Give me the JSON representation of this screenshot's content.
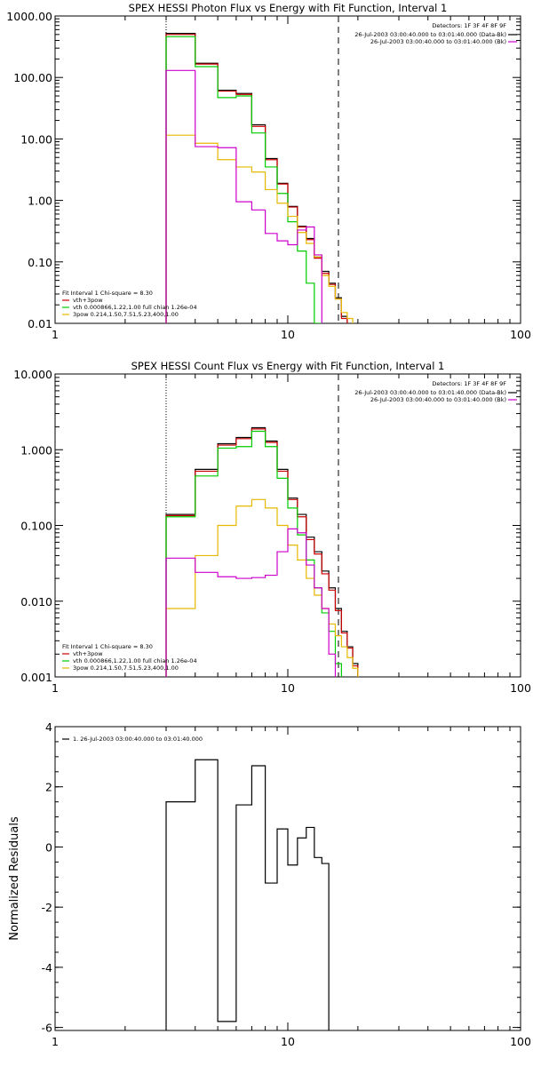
{
  "chart_data": [
    {
      "type": "line",
      "title": "SPEX HESSI Photon Flux vs Energy with Fit Function, Interval 1",
      "xscale": "log",
      "yscale": "log",
      "xlim": [
        1,
        100
      ],
      "ylim": [
        0.01,
        1000
      ],
      "x_ticks": [
        1,
        10,
        100
      ],
      "x_tick_labels": [
        "1",
        "10",
        "100"
      ],
      "y_ticks": [
        0.01,
        0.1,
        1,
        10,
        100,
        1000
      ],
      "y_tick_labels": [
        "0.01",
        "0.10",
        "1.00",
        "10.00",
        "100.00",
        "1000.00"
      ],
      "vlines": [
        {
          "x": 3,
          "style": "dotted"
        },
        {
          "x": 16.5,
          "style": "dashed"
        }
      ],
      "legend_right": {
        "header": "Detectors: 1F 3F 4F 8F 9F",
        "entries": [
          {
            "label": "26-Jul-2003 03:00:40.000 to 03:01:40.000 (Data-Bk)",
            "color": "#000000"
          },
          {
            "label": "26-Jul-2003 03:00:40.000 to 03:01:40.000 (Bk)",
            "color": "#cc00cc"
          }
        ]
      },
      "legend_left": {
        "header": "Fit Interval 1   Chi-square = 8.30",
        "entries": [
          {
            "label": "vth+3pow",
            "color": "#cc0000"
          },
          {
            "label": "vth 0.000866,1.22,1.00  full chian 1.26e-04",
            "color": "#00cc00"
          },
          {
            "label": "3pow 0.214,1.50,7.51,5.23,400,1.00",
            "color": "#e6b800"
          }
        ]
      },
      "x_edges": [
        3,
        4,
        5,
        6,
        7,
        8,
        9,
        10,
        11,
        12,
        13,
        14,
        15,
        16,
        17,
        18,
        19,
        20,
        21
      ],
      "series": [
        {
          "name": "Data-Bk",
          "color": "#000000",
          "values": [
            520,
            170,
            62,
            55,
            17,
            4.8,
            1.9,
            0.8,
            0.38,
            0.24,
            0.12,
            0.07,
            0.045,
            0.026,
            0.013,
            null,
            null,
            null
          ]
        },
        {
          "name": "vth+3pow",
          "color": "#cc0000",
          "values": [
            500,
            165,
            60,
            53,
            16,
            4.6,
            1.85,
            0.78,
            0.37,
            0.23,
            0.115,
            0.065,
            0.043,
            0.025,
            0.012,
            null,
            null,
            null
          ]
        },
        {
          "name": "vth",
          "color": "#00cc00",
          "values": [
            460,
            150,
            47,
            50,
            12.5,
            3.5,
            1.3,
            0.45,
            0.15,
            0.045,
            0.01,
            null,
            null,
            null,
            null,
            null,
            null,
            null
          ]
        },
        {
          "name": "3pow",
          "color": "#e6b800",
          "values": [
            11.5,
            8.5,
            4.6,
            3.5,
            2.9,
            1.5,
            0.9,
            0.55,
            0.3,
            0.2,
            0.12,
            0.06,
            0.04,
            0.025,
            0.015,
            0.012,
            null,
            null
          ]
        },
        {
          "name": "Bk",
          "color": "#cc00cc",
          "values": [
            130,
            7.5,
            7.2,
            0.95,
            0.7,
            0.29,
            0.22,
            0.19,
            0.33,
            0.37,
            0.13,
            null,
            null,
            null,
            null,
            null,
            null,
            null
          ]
        }
      ]
    },
    {
      "type": "line",
      "title": "SPEX HESSI Count Flux vs Energy with Fit Function, Interval 1",
      "xscale": "log",
      "yscale": "log",
      "xlim": [
        1,
        100
      ],
      "ylim": [
        0.001,
        10
      ],
      "x_ticks": [
        1,
        10,
        100
      ],
      "x_tick_labels": [
        "1",
        "10",
        "100"
      ],
      "y_ticks": [
        0.001,
        0.01,
        0.1,
        1,
        10
      ],
      "y_tick_labels": [
        "0.001",
        "0.010",
        "0.100",
        "1.000",
        "10.000"
      ],
      "vlines": [
        {
          "x": 3,
          "style": "dotted"
        },
        {
          "x": 16.5,
          "style": "dashed"
        }
      ],
      "legend_right": {
        "header": "Detectors: 1F 3F 4F 8F 9F",
        "entries": [
          {
            "label": "26-Jul-2003 03:00:40.000 to 03:01:40.000 (Data-Bk)",
            "color": "#000000"
          },
          {
            "label": "26-Jul-2003 03:00:40.000 to 03:01:40.000 (Bk)",
            "color": "#cc00cc"
          }
        ]
      },
      "legend_left": {
        "header": "Fit Interval 1   Chi-square = 8.30",
        "entries": [
          {
            "label": "vth+3pow",
            "color": "#cc0000"
          },
          {
            "label": "vth 0.000866,1.22,1.00  full chian 1.26e-04",
            "color": "#00cc00"
          },
          {
            "label": "3pow 0.214,1.50,7.51,5.23,400,1.00",
            "color": "#e6b800"
          }
        ]
      },
      "x_edges": [
        3,
        4,
        5,
        6,
        7,
        8,
        9,
        10,
        11,
        12,
        13,
        14,
        15,
        16,
        17,
        18,
        19,
        20,
        21
      ],
      "series": [
        {
          "name": "Data-Bk",
          "color": "#000000",
          "values": [
            0.14,
            0.55,
            1.2,
            1.45,
            1.95,
            1.3,
            0.55,
            0.23,
            0.14,
            0.07,
            0.045,
            0.025,
            0.015,
            0.008,
            0.004,
            0.0025,
            0.0015,
            null
          ]
        },
        {
          "name": "vth+3pow",
          "color": "#cc0000",
          "values": [
            0.135,
            0.52,
            1.15,
            1.4,
            1.88,
            1.25,
            0.52,
            0.22,
            0.13,
            0.065,
            0.042,
            0.023,
            0.014,
            0.0075,
            0.0038,
            0.0024,
            0.0014,
            null
          ]
        },
        {
          "name": "vth",
          "color": "#00cc00",
          "values": [
            0.13,
            0.45,
            1.05,
            1.1,
            1.75,
            1.1,
            0.42,
            0.17,
            0.075,
            0.035,
            0.015,
            0.007,
            0.004,
            0.0015,
            null,
            null,
            null,
            null
          ]
        },
        {
          "name": "3pow",
          "color": "#e6b800",
          "values": [
            0.008,
            0.04,
            0.1,
            0.18,
            0.22,
            0.17,
            0.1,
            0.055,
            0.035,
            0.02,
            0.012,
            0.008,
            0.005,
            0.0035,
            0.0025,
            0.0018,
            0.0013,
            null
          ]
        },
        {
          "name": "Bk",
          "color": "#cc00cc",
          "values": [
            0.037,
            0.024,
            0.021,
            0.02,
            0.0205,
            0.022,
            0.045,
            0.09,
            0.08,
            0.03,
            0.015,
            0.008,
            0.002,
            null,
            null,
            null,
            null,
            null
          ]
        }
      ]
    },
    {
      "type": "line",
      "title": "",
      "xscale": "log",
      "yscale": "linear",
      "xlim": [
        1,
        100
      ],
      "ylim": [
        -6.1,
        4
      ],
      "x_ticks": [
        1,
        10,
        100
      ],
      "x_tick_labels": [
        "1",
        "10",
        "100"
      ],
      "y_ticks": [
        -6,
        -4,
        -2,
        0,
        2,
        4
      ],
      "y_tick_labels": [
        "-6",
        "-4",
        "-2",
        "0",
        "2",
        "4"
      ],
      "ylabel": "Normalized Residuals",
      "legend_left": {
        "header": "",
        "entries": [
          {
            "label": "1. 26-Jul-2003 03:00:40.000 to 03:01:40.000",
            "color": "#000000"
          }
        ]
      },
      "x_edges": [
        3,
        4,
        5,
        6,
        7,
        8,
        9,
        10,
        11,
        12,
        13,
        14,
        15,
        16,
        17
      ],
      "series": [
        {
          "name": "1",
          "color": "#000000",
          "values": [
            1.5,
            2.9,
            -5.8,
            1.4,
            2.7,
            -1.2,
            0.6,
            -0.6,
            0.3,
            0.65,
            -0.35,
            -0.55
          ]
        }
      ]
    }
  ]
}
